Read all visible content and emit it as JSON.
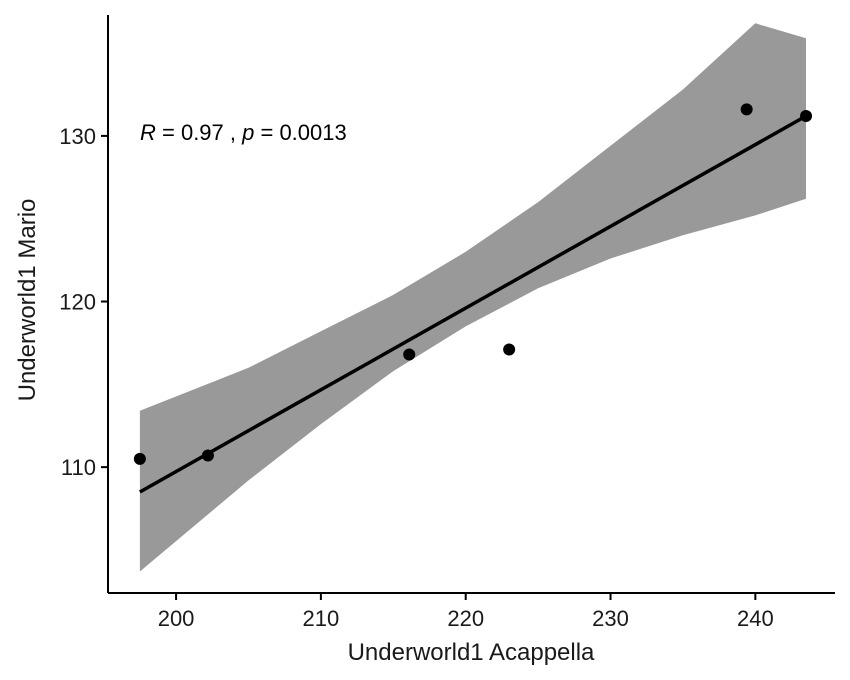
{
  "chart_data": {
    "type": "scatter",
    "xlabel": "Underworld1 Acappella",
    "ylabel": "Underworld1 Mario",
    "xlim": [
      195.3,
      245.5
    ],
    "ylim": [
      102.4,
      137.3
    ],
    "xticks": [
      200,
      210,
      220,
      230,
      240
    ],
    "yticks": [
      110,
      120,
      130
    ],
    "grid": false,
    "points": [
      {
        "x": 197.5,
        "y": 110.5
      },
      {
        "x": 202.2,
        "y": 110.7
      },
      {
        "x": 216.1,
        "y": 116.8
      },
      {
        "x": 223.0,
        "y": 117.1
      },
      {
        "x": 239.4,
        "y": 131.6
      },
      {
        "x": 243.5,
        "y": 131.2
      }
    ],
    "fit_line": {
      "x": [
        197.5,
        243.5
      ],
      "y": [
        108.5,
        131.2
      ]
    },
    "confidence_band": {
      "x": [
        197.5,
        205,
        210,
        215,
        220,
        225,
        230,
        235,
        240,
        243.5
      ],
      "lower": [
        103.7,
        109.2,
        112.6,
        115.8,
        118.5,
        120.8,
        122.6,
        124.0,
        125.2,
        126.2
      ],
      "upper": [
        113.4,
        116.0,
        118.2,
        120.4,
        123.0,
        126.0,
        129.4,
        132.8,
        136.8,
        135.9
      ]
    },
    "annotation": {
      "r_label": "R",
      "r_text": " = 0.97 , ",
      "p_label": "p",
      "p_text": " = 0.0013"
    },
    "colors": {
      "points": "#000000",
      "line": "#000000",
      "band": "#999999"
    }
  }
}
